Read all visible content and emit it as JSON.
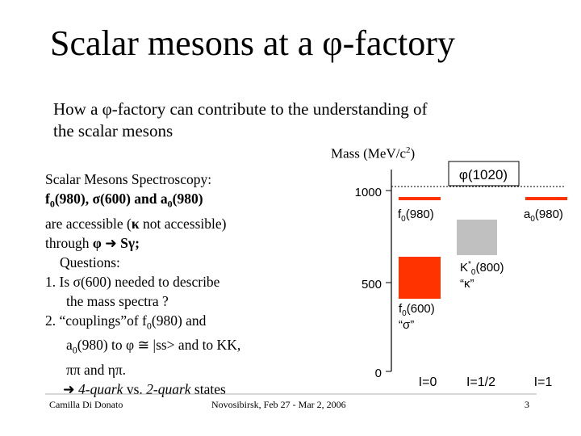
{
  "title": {
    "prefix": "Scalar mesons at a ",
    "phi": "φ",
    "suffix": "-factory"
  },
  "intro": {
    "line1": "How a φ-factory can contribute to the understanding of",
    "line2": "the scalar mesons"
  },
  "left": {
    "heading": "Scalar Mesons Spectroscopy:",
    "l2_a": "f",
    "l2_sub1": "0",
    "l2_b": "(980), σ(600) and a",
    "l2_sub2": "0",
    "l2_c": "(980)",
    "l3_a": "are accessible (",
    "l3_kappa": "κ",
    "l3_b": " not accessible)",
    "l4_a": "through ",
    "l4_phi": "φ",
    "l4_arrow": "➜",
    "l4_b": " Sγ;",
    "questions": "Questions:",
    "q1a": "1. Is σ(600) needed to describe",
    "q1b": "the mass spectra ?",
    "q2a_a": "2. “couplings”of f",
    "q2a_sub": "0",
    "q2a_b": "(980) and",
    "q2b_a": "a",
    "q2b_sub": "0",
    "q2b_b": "(980) to φ ≅ |ss> and to KK,",
    "q2c": "ππ and ηπ.",
    "concl_arrow": "➜",
    "concl_a": "4-quark",
    "concl_b": " vs. ",
    "concl_c": "2-quark",
    "concl_d": " states"
  },
  "diagram": {
    "axis_title": "Mass (MeV/c",
    "axis_title_sup": "2",
    "axis_title_end": ")",
    "ticks": [
      "1000",
      "500",
      "0"
    ],
    "phi_label": "φ(1020)",
    "f0_980": {
      "name": "f",
      "sub": "0",
      "mass": "(980)"
    },
    "a0_980": {
      "name": "a",
      "sub": "0",
      "mass": "(980)"
    },
    "kappa": {
      "name": "K",
      "sup": "*",
      "sub": "0",
      "mass": "(800)",
      "quoted": "“κ”"
    },
    "sigma": {
      "name": "f",
      "sub": "0",
      "mass": "(600)",
      "quoted": "“σ”"
    },
    "isospin": [
      "I=0",
      "I=1/2",
      "I=1"
    ],
    "colors": {
      "red": "#ff3300",
      "gray": "#c0c0c0"
    }
  },
  "footer": {
    "author": "Camilla Di Donato",
    "venue": "Novosibirsk, Feb 27 - Mar 2, 2006",
    "page": "3"
  }
}
